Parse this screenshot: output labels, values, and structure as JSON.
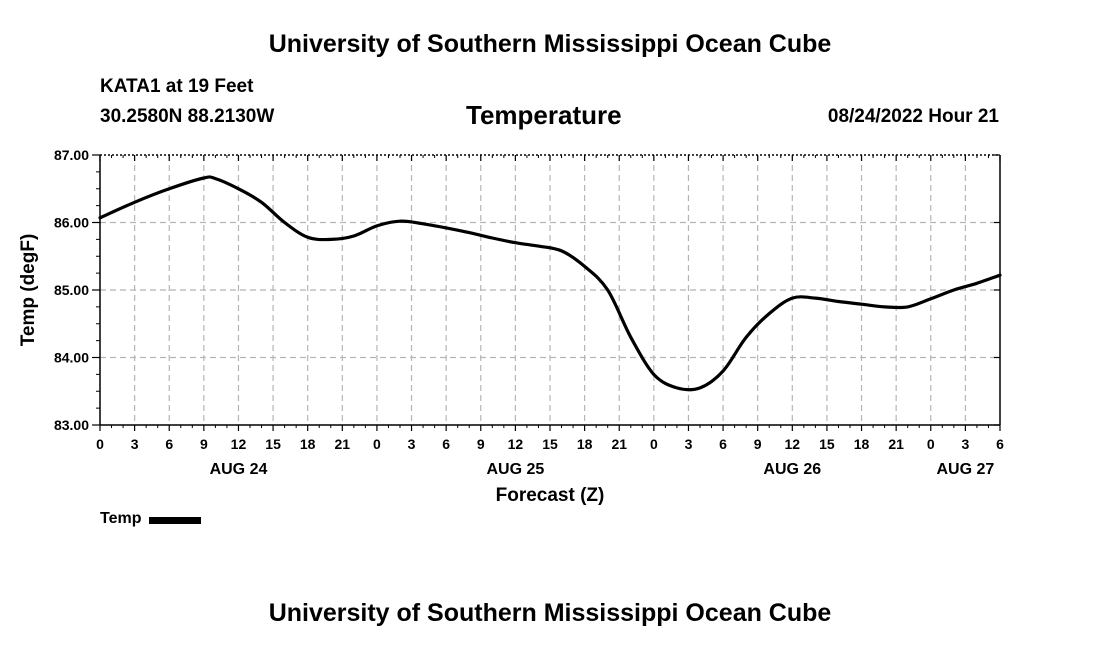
{
  "header": {
    "title": "University of Southern Mississippi Ocean Cube",
    "station": "KATA1 at 19 Feet",
    "coords": "30.2580N  88.2130W",
    "parameter": "Temperature",
    "datetime": "08/24/2022 Hour 21"
  },
  "footer": {
    "title": "University of Southern Mississippi Ocean Cube"
  },
  "legend": {
    "label": "Temp",
    "color": "#000000"
  },
  "chart_data": {
    "type": "line",
    "title": "Temperature",
    "xlabel": "Forecast (Z)",
    "ylabel": "Temp (degF)",
    "ylim": [
      83.0,
      87.0
    ],
    "xlim": [
      0,
      78
    ],
    "x_unit": "hours since AUG 24 00Z",
    "yticks": [
      "83.00",
      "84.00",
      "85.00",
      "86.00",
      "87.00"
    ],
    "xtick_labels": [
      "0",
      "3",
      "6",
      "9",
      "12",
      "15",
      "18",
      "21",
      "0",
      "3",
      "6",
      "9",
      "12",
      "15",
      "18",
      "21",
      "0",
      "3",
      "6",
      "9",
      "12",
      "15",
      "18",
      "21",
      "0",
      "3",
      "6"
    ],
    "day_labels": [
      {
        "label": "AUG 24",
        "hour": 12
      },
      {
        "label": "AUG 25",
        "hour": 36
      },
      {
        "label": "AUG 26",
        "hour": 60
      },
      {
        "label": "AUG 27",
        "hour": 75
      }
    ],
    "grid": true,
    "series": [
      {
        "name": "Temp",
        "x": [
          0,
          3,
          6,
          9,
          10,
          12,
          14,
          16,
          18,
          20,
          22,
          24,
          26,
          28,
          30,
          32,
          34,
          36,
          38,
          40,
          42,
          44,
          46,
          48,
          50,
          52,
          54,
          56,
          58,
          60,
          62,
          64,
          66,
          68,
          70,
          72,
          74,
          76,
          78
        ],
        "y": [
          86.07,
          86.3,
          86.5,
          86.66,
          86.65,
          86.5,
          86.3,
          86.0,
          85.78,
          85.75,
          85.8,
          85.95,
          86.02,
          85.98,
          85.92,
          85.85,
          85.77,
          85.7,
          85.65,
          85.58,
          85.35,
          85.0,
          84.3,
          83.75,
          83.55,
          83.55,
          83.8,
          84.3,
          84.65,
          84.88,
          84.88,
          84.83,
          84.79,
          84.75,
          84.75,
          84.87,
          85.0,
          85.1,
          85.22
        ]
      }
    ]
  }
}
